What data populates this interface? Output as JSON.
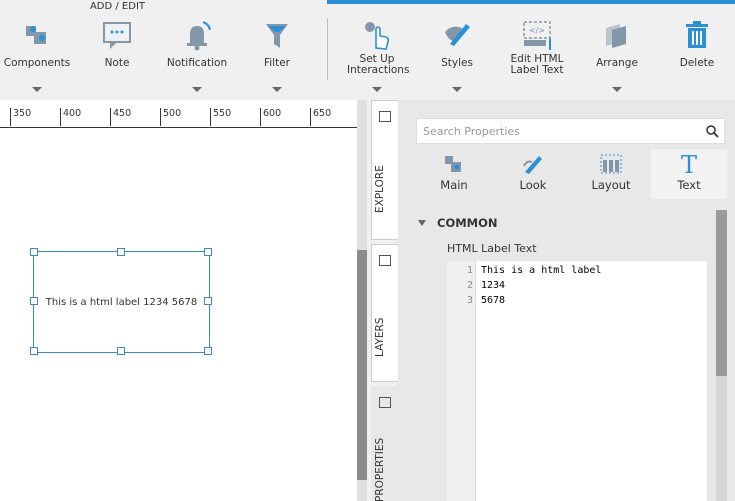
{
  "toolbar": {
    "group_label": "ADD / EDIT",
    "buttons": [
      "Components",
      "Note",
      "Notification",
      "Filter",
      "Set Up Interactions",
      "Styles",
      "Edit HTML Label Text",
      "Arrange",
      "Delete"
    ]
  },
  "ruler": {
    "ticks": [
      350,
      400,
      450,
      500,
      550,
      600,
      650
    ]
  },
  "canvas": {
    "label_text": "This is a html label 1234 5678"
  },
  "side_tabs": [
    "EXPLORE",
    "LAYERS",
    "PROPERTIES"
  ],
  "properties": {
    "search_placeholder": "Search Properties",
    "tabs": [
      "Main",
      "Look",
      "Layout",
      "Text"
    ],
    "section": "COMMON",
    "field_label": "HTML Label Text",
    "editor_lines": [
      {
        "number": 1,
        "text": "This is a html label"
      },
      {
        "number": 2,
        "text": "1234"
      },
      {
        "number": 3,
        "text": "5678"
      }
    ]
  }
}
